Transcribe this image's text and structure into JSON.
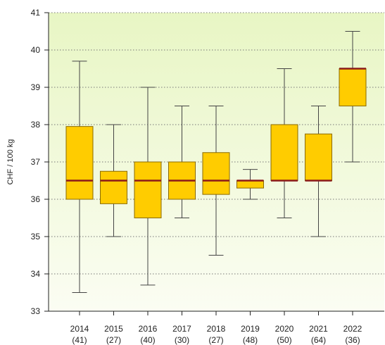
{
  "chart_data": {
    "type": "boxplot",
    "ylabel": "CHF / 100 kg",
    "ylim": [
      33,
      41
    ],
    "yticks": [
      33,
      34,
      35,
      36,
      37,
      38,
      39,
      40,
      41
    ],
    "grid": "horizontal-dotted",
    "categories": [
      {
        "year": "2014",
        "count": "(41)",
        "min": 33.5,
        "q1": 36.0,
        "median": 36.5,
        "q3": 37.95,
        "max": 39.7
      },
      {
        "year": "2015",
        "count": "(27)",
        "min": 35.0,
        "q1": 35.88,
        "median": 36.5,
        "q3": 36.75,
        "max": 38.0
      },
      {
        "year": "2016",
        "count": "(40)",
        "min": 33.7,
        "q1": 35.5,
        "median": 36.5,
        "q3": 37.0,
        "max": 39.0
      },
      {
        "year": "2017",
        "count": "(30)",
        "min": 35.5,
        "q1": 36.0,
        "median": 36.5,
        "q3": 37.0,
        "max": 38.5
      },
      {
        "year": "2018",
        "count": "(27)",
        "min": 34.5,
        "q1": 36.13,
        "median": 36.5,
        "q3": 37.25,
        "max": 38.5
      },
      {
        "year": "2019",
        "count": "(48)",
        "min": 36.0,
        "q1": 36.3,
        "median": 36.5,
        "q3": 36.5,
        "max": 36.8
      },
      {
        "year": "2020",
        "count": "(50)",
        "min": 35.5,
        "q1": 36.5,
        "median": 36.5,
        "q3": 38.0,
        "max": 39.5
      },
      {
        "year": "2021",
        "count": "(64)",
        "min": 35.0,
        "q1": 36.5,
        "median": 36.5,
        "q3": 37.75,
        "max": 38.5
      },
      {
        "year": "2022",
        "count": "(36)",
        "min": 37.0,
        "q1": 38.5,
        "median": 39.5,
        "q3": 39.5,
        "max": 40.5
      }
    ],
    "colors": {
      "box_fill": "#ffcc00",
      "box_stroke": "#8a6a00",
      "median": "#8b1a1a",
      "whisker": "#444444",
      "grid": "#777777",
      "background_top": "#e8f6c4",
      "background_bottom": "#fbfdf3"
    }
  }
}
